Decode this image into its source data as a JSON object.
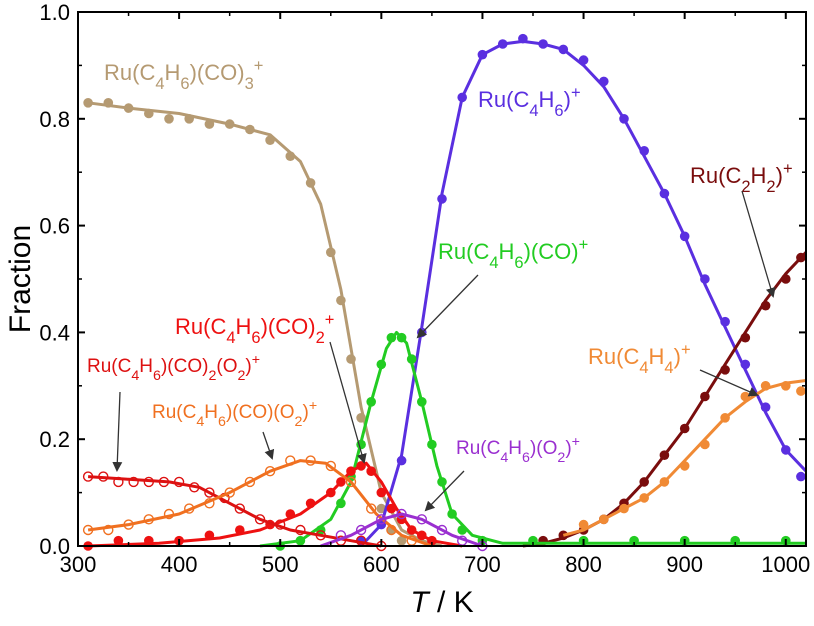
{
  "chart_data": {
    "type": "scatter",
    "xlabel": "T",
    "xunit": "K",
    "ylabel": "Fraction",
    "xlim": [
      300,
      1020
    ],
    "ylim": [
      0.0,
      1.0
    ],
    "xticks": [
      "300",
      "400",
      "500",
      "600",
      "700",
      "800",
      "900",
      "1000"
    ],
    "yticks": [
      "0.0",
      "0.2",
      "0.4",
      "0.6",
      "0.8",
      "1.0"
    ],
    "grid": false,
    "legend": "inline labels",
    "series": [
      {
        "name": "Ru(C4H6)(CO)3+",
        "color": "#b59a72",
        "marker": "filled",
        "x": [
          310,
          330,
          350,
          370,
          390,
          410,
          430,
          450,
          470,
          490,
          510,
          530,
          550,
          560,
          570,
          580,
          590,
          600,
          610,
          620
        ],
        "y": [
          0.83,
          0.83,
          0.82,
          0.81,
          0.8,
          0.8,
          0.79,
          0.79,
          0.78,
          0.76,
          0.73,
          0.68,
          0.55,
          0.46,
          0.35,
          0.24,
          0.14,
          0.07,
          0.03,
          0.01
        ],
        "curve_x": [
          310,
          350,
          400,
          450,
          490,
          520,
          540,
          560,
          580,
          600,
          620,
          640,
          660
        ],
        "curve_y": [
          0.83,
          0.82,
          0.81,
          0.79,
          0.77,
          0.72,
          0.64,
          0.48,
          0.26,
          0.1,
          0.03,
          0.01,
          0.0
        ]
      },
      {
        "name": "Ru(C4H6)+",
        "color": "#5a2fe0",
        "marker": "filled",
        "x": [
          580,
          600,
          620,
          640,
          660,
          680,
          700,
          720,
          740,
          760,
          780,
          800,
          820,
          840,
          860,
          880,
          900,
          920,
          940,
          960,
          980,
          1000,
          1015
        ],
        "y": [
          0.01,
          0.04,
          0.16,
          0.4,
          0.65,
          0.84,
          0.92,
          0.94,
          0.95,
          0.94,
          0.93,
          0.91,
          0.87,
          0.8,
          0.74,
          0.66,
          0.58,
          0.5,
          0.42,
          0.34,
          0.26,
          0.18,
          0.13
        ],
        "curve_x": [
          580,
          600,
          620,
          640,
          660,
          680,
          700,
          720,
          740,
          760,
          780,
          800,
          820,
          840,
          860,
          880,
          900,
          920,
          940,
          960,
          980,
          1000,
          1020
        ],
        "curve_y": [
          0.0,
          0.04,
          0.17,
          0.41,
          0.66,
          0.84,
          0.92,
          0.94,
          0.945,
          0.94,
          0.93,
          0.9,
          0.86,
          0.8,
          0.73,
          0.66,
          0.58,
          0.49,
          0.41,
          0.33,
          0.25,
          0.18,
          0.14
        ]
      },
      {
        "name": "Ru(C2H2)+",
        "color": "#7a0d0d",
        "marker": "filled",
        "x": [
          760,
          780,
          800,
          820,
          840,
          860,
          880,
          900,
          920,
          940,
          960,
          980,
          1000,
          1015
        ],
        "y": [
          0.01,
          0.02,
          0.03,
          0.05,
          0.08,
          0.12,
          0.17,
          0.22,
          0.28,
          0.33,
          0.39,
          0.45,
          0.5,
          0.54
        ],
        "curve_x": [
          740,
          760,
          780,
          800,
          820,
          840,
          860,
          880,
          900,
          920,
          940,
          960,
          980,
          1000,
          1020
        ],
        "curve_y": [
          0.0,
          0.005,
          0.015,
          0.03,
          0.05,
          0.08,
          0.12,
          0.17,
          0.22,
          0.28,
          0.34,
          0.4,
          0.46,
          0.51,
          0.55
        ]
      },
      {
        "name": "Ru(C4H6)(CO)+",
        "color": "#22cc22",
        "marker": "filled",
        "x": [
          500,
          520,
          540,
          560,
          570,
          580,
          590,
          600,
          610,
          620,
          630,
          640,
          650,
          660,
          670,
          680,
          700,
          750,
          800,
          850,
          900,
          950,
          1000
        ],
        "y": [
          0.0,
          0.01,
          0.03,
          0.08,
          0.13,
          0.19,
          0.27,
          0.34,
          0.39,
          0.39,
          0.35,
          0.27,
          0.19,
          0.12,
          0.06,
          0.03,
          0.01,
          0.01,
          0.01,
          0.01,
          0.01,
          0.01,
          0.01
        ],
        "curve_x": [
          480,
          520,
          550,
          570,
          590,
          605,
          615,
          625,
          640,
          655,
          670,
          690,
          720,
          800,
          900,
          1020
        ],
        "curve_y": [
          0.0,
          0.01,
          0.05,
          0.12,
          0.27,
          0.37,
          0.4,
          0.38,
          0.27,
          0.15,
          0.06,
          0.02,
          0.005,
          0.005,
          0.005,
          0.005
        ]
      },
      {
        "name": "Ru(C4H6)(CO)2+",
        "color": "#ee1111",
        "marker": "filled",
        "x": [
          310,
          340,
          370,
          400,
          430,
          460,
          490,
          510,
          530,
          550,
          560,
          570,
          580,
          590,
          600,
          610,
          620,
          630,
          640,
          650
        ],
        "y": [
          0.0,
          0.01,
          0.01,
          0.01,
          0.02,
          0.03,
          0.04,
          0.06,
          0.08,
          0.1,
          0.12,
          0.14,
          0.15,
          0.14,
          0.1,
          0.07,
          0.05,
          0.03,
          0.02,
          0.01
        ],
        "curve_x": [
          310,
          380,
          440,
          480,
          520,
          550,
          570,
          585,
          600,
          615,
          630,
          650,
          680
        ],
        "curve_y": [
          0.0,
          0.005,
          0.015,
          0.03,
          0.06,
          0.1,
          0.14,
          0.155,
          0.12,
          0.07,
          0.03,
          0.01,
          0.0
        ]
      },
      {
        "name": "Ru(C4H6)(CO)2(O2)+",
        "color": "#dd1111",
        "marker": "open",
        "x": [
          310,
          325,
          340,
          355,
          370,
          385,
          400,
          415,
          430,
          445,
          460,
          480,
          500,
          520,
          540,
          560,
          580,
          600
        ],
        "y": [
          0.13,
          0.13,
          0.12,
          0.12,
          0.12,
          0.12,
          0.12,
          0.11,
          0.1,
          0.09,
          0.07,
          0.05,
          0.04,
          0.03,
          0.02,
          0.01,
          0.01,
          0.0
        ],
        "curve_x": [
          310,
          350,
          390,
          420,
          450,
          480,
          510,
          540,
          570,
          600
        ],
        "curve_y": [
          0.13,
          0.125,
          0.12,
          0.11,
          0.08,
          0.05,
          0.03,
          0.02,
          0.01,
          0.0
        ]
      },
      {
        "name": "Ru(C4H6)(CO)(O2)+",
        "color": "#f07020",
        "marker": "open",
        "x": [
          310,
          330,
          350,
          370,
          390,
          410,
          430,
          450,
          470,
          490,
          510,
          530,
          550,
          570,
          590,
          610,
          630
        ],
        "y": [
          0.03,
          0.03,
          0.04,
          0.05,
          0.06,
          0.07,
          0.08,
          0.1,
          0.12,
          0.14,
          0.16,
          0.16,
          0.15,
          0.12,
          0.07,
          0.03,
          0.01
        ],
        "curve_x": [
          310,
          350,
          400,
          450,
          490,
          520,
          545,
          570,
          595,
          620,
          650
        ],
        "curve_y": [
          0.03,
          0.04,
          0.06,
          0.1,
          0.14,
          0.16,
          0.155,
          0.12,
          0.06,
          0.02,
          0.0
        ]
      },
      {
        "name": "Ru(C4H6)(O2)+",
        "color": "#9a2fd0",
        "marker": "open",
        "x": [
          560,
          580,
          600,
          620,
          640,
          660,
          680,
          700
        ],
        "y": [
          0.02,
          0.03,
          0.05,
          0.06,
          0.05,
          0.03,
          0.01,
          0.0
        ],
        "curve_x": [
          540,
          570,
          600,
          620,
          640,
          670,
          700
        ],
        "curve_y": [
          0.0,
          0.02,
          0.05,
          0.06,
          0.05,
          0.02,
          0.0
        ]
      },
      {
        "name": "Ru(C4H4)+",
        "color": "#f08a35",
        "marker": "filled",
        "x": [
          800,
          820,
          840,
          860,
          880,
          900,
          920,
          940,
          960,
          980,
          1000,
          1015
        ],
        "y": [
          0.04,
          0.05,
          0.07,
          0.09,
          0.12,
          0.15,
          0.19,
          0.24,
          0.28,
          0.3,
          0.3,
          0.29
        ],
        "curve_x": [
          780,
          800,
          820,
          840,
          860,
          880,
          900,
          920,
          940,
          960,
          980,
          1000,
          1020
        ],
        "curve_y": [
          0.02,
          0.03,
          0.05,
          0.07,
          0.09,
          0.12,
          0.16,
          0.2,
          0.24,
          0.27,
          0.295,
          0.305,
          0.31
        ]
      }
    ],
    "labels": [
      {
        "key": "lbl_co3",
        "text_main": "Ru(C",
        "sub1": "4",
        "mid1": "H",
        "sub2": "6",
        "tail": ")(CO)",
        "sub3": "3",
        "sup": "+",
        "color": "#b59a72"
      },
      {
        "key": "lbl_c4h6",
        "text_main": "Ru(C",
        "sub1": "4",
        "mid1": "H",
        "sub2": "6",
        "tail": ")",
        "sup": "+",
        "color": "#5a2fe0"
      },
      {
        "key": "lbl_c2h2",
        "text_main": "Ru(C",
        "sub1": "2",
        "mid1": "H",
        "sub2": "2",
        "tail": ")",
        "sup": "+",
        "color": "#7a0d0d"
      },
      {
        "key": "lbl_co",
        "text_main": "Ru(C",
        "sub1": "4",
        "mid1": "H",
        "sub2": "6",
        "tail": ")(CO)",
        "sup": "+",
        "color": "#22cc22"
      },
      {
        "key": "lbl_co2",
        "text_main": "Ru(C",
        "sub1": "4",
        "mid1": "H",
        "sub2": "6",
        "tail": ")(CO)",
        "sub3": "2",
        "sup": "+",
        "color": "#ee1111"
      },
      {
        "key": "lbl_co2o2",
        "text_main": "Ru(C",
        "sub1": "4",
        "mid1": "H",
        "sub2": "6",
        "tail": ")(CO)",
        "sub3": "2",
        "tail2": "(O",
        "sub4": "2",
        "tail3": ")",
        "sup": "+",
        "color": "#dd1111"
      },
      {
        "key": "lbl_coo2",
        "text_main": "Ru(C",
        "sub1": "4",
        "mid1": "H",
        "sub2": "6",
        "tail": ")(CO)(O",
        "sub3": "2",
        "tail2": ")",
        "sup": "+",
        "color": "#f07020"
      },
      {
        "key": "lbl_o2",
        "text_main": "Ru(C",
        "sub1": "4",
        "mid1": "H",
        "sub2": "6",
        "tail": ")(O",
        "sub3": "2",
        "tail2": ")",
        "sup": "+",
        "color": "#9a2fd0"
      },
      {
        "key": "lbl_c4h4",
        "text_main": "Ru(C",
        "sub1": "4",
        "mid1": "H",
        "sub2": "4",
        "tail": ")",
        "sup": "+",
        "color": "#f08a35"
      }
    ]
  }
}
